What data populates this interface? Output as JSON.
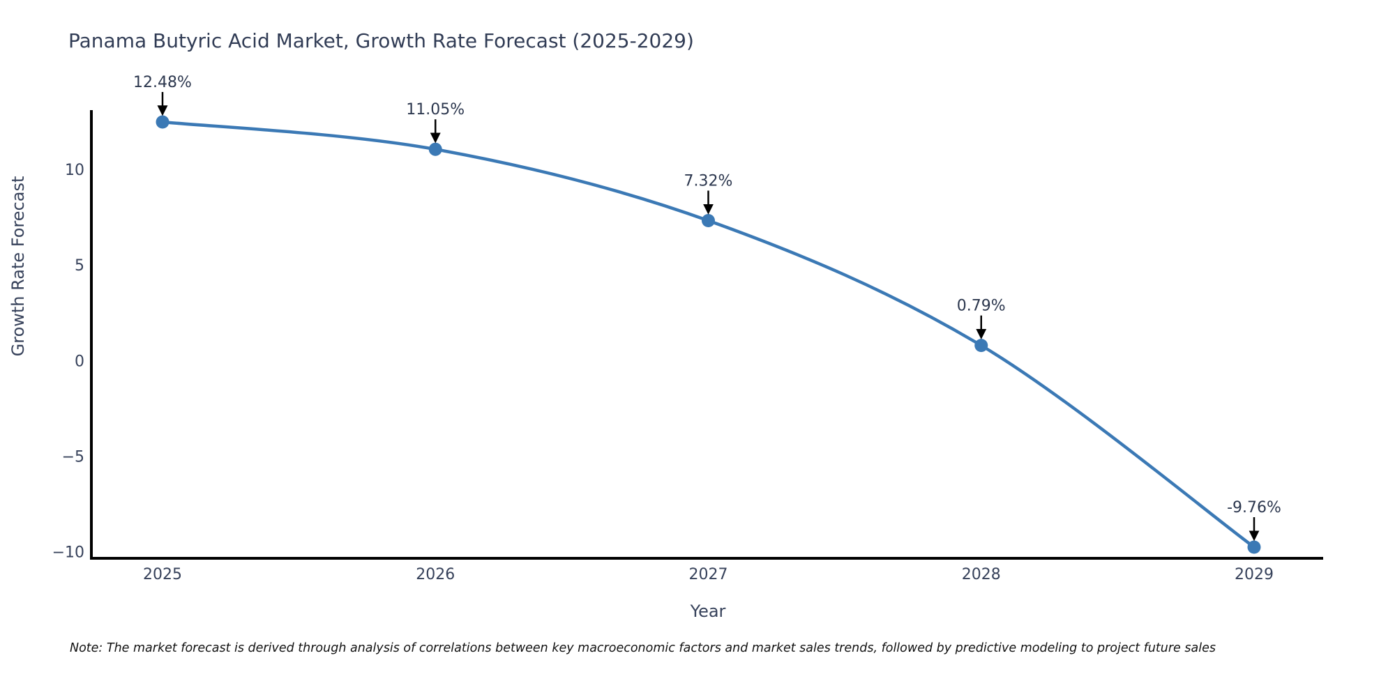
{
  "title": "Panama Butyric Acid Market, Growth Rate Forecast (2025-2029)",
  "note": "Note: The market forecast is derived through analysis of correlations between key macroeconomic factors and market sales trends, followed by predictive modeling to project future sales",
  "chart_data": {
    "type": "line",
    "title": "Panama Butyric Acid Market, Growth Rate Forecast (2025-2029)",
    "xlabel": "Year",
    "ylabel": "Growth Rate Forecast",
    "x": [
      2025,
      2026,
      2027,
      2028,
      2029
    ],
    "values": [
      12.48,
      11.05,
      7.32,
      0.79,
      -9.76
    ],
    "point_labels": [
      "12.48%",
      "11.05%",
      "7.32%",
      "0.79%",
      "-9.76%"
    ],
    "x_tick_labels": [
      "2025",
      "2026",
      "2027",
      "2028",
      "2029"
    ],
    "y_tick_values": [
      10,
      5,
      0,
      -5,
      -10
    ],
    "y_tick_labels": [
      "10",
      "5",
      "0",
      "−5",
      "−10"
    ],
    "ylim": [
      -10.4,
      13.1
    ],
    "grid": false,
    "legend": "none",
    "line_color": "#3b79b5",
    "marker_color": "#3b79b5",
    "annotation_arrow_color": "#000000",
    "axis_color": "#000000"
  },
  "colors": {
    "background": "#ffffff",
    "title_text": "#313c55",
    "tick_text": "#36415a",
    "note_text": "#111111"
  }
}
